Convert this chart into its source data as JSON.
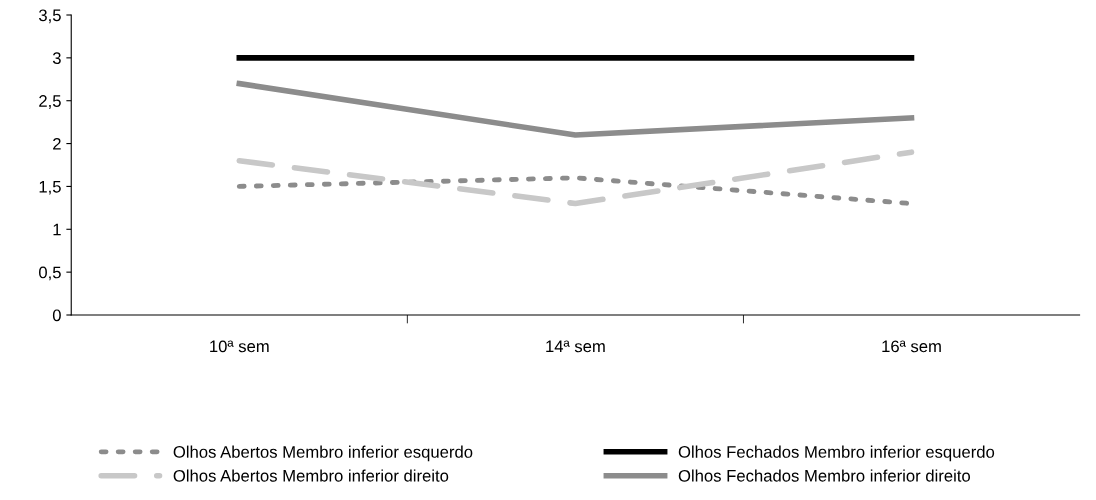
{
  "chart_data": {
    "type": "line",
    "categories": [
      "10ª sem",
      "14ª sem",
      "16ª sem"
    ],
    "series": [
      {
        "name": "Olhos Abertos Membro inferior esquerdo",
        "color": "#8c8c8c",
        "line_style": "dotted",
        "values": [
          1.5,
          1.6,
          1.3
        ]
      },
      {
        "name": "Olhos Abertos Membro inferior direito",
        "color": "#c8c8c8",
        "line_style": "dashed",
        "values": [
          1.8,
          1.3,
          1.9
        ]
      },
      {
        "name": "Olhos Fechados Membro inferior esquerdo",
        "color": "#000000",
        "line_style": "solid",
        "values": [
          3,
          3,
          3
        ]
      },
      {
        "name": "Olhos Fechados Membro inferior direito",
        "color": "#8c8c8c",
        "line_style": "solid",
        "values": [
          2.7,
          2.1,
          2.3
        ]
      }
    ],
    "ylim": [
      0,
      3.5
    ],
    "yticks": [
      0,
      {
        "value": 0.5,
        "label": "0,5"
      },
      1,
      {
        "value": 1.5,
        "label": "1,5"
      },
      2,
      {
        "value": 2.5,
        "label": "2,5"
      },
      3,
      {
        "value": 3.5,
        "label": "3,5"
      }
    ],
    "grid": false,
    "legend": "bottom",
    "marker": "none"
  }
}
